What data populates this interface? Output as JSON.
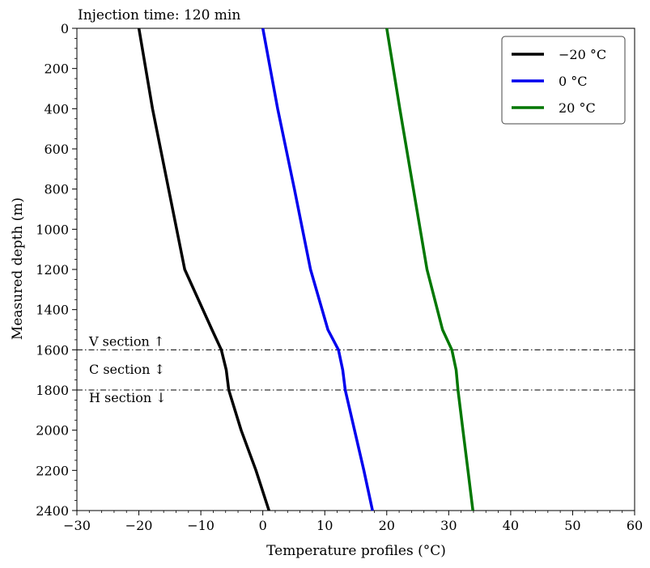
{
  "chart_data": {
    "type": "line",
    "title": "Injection time: 120 min",
    "xlabel": "Temperature profiles (°C)",
    "ylabel": "Measured depth (m)",
    "xlim": [
      -30,
      60
    ],
    "ylim": [
      2400,
      0
    ],
    "y_inverted": true,
    "grid": false,
    "legend_position": "top-right",
    "x_ticks": [
      -30,
      -20,
      -10,
      0,
      10,
      20,
      30,
      40,
      50,
      60
    ],
    "x_tick_labels": [
      "−30",
      "−20",
      "−10",
      "0",
      "10",
      "20",
      "30",
      "40",
      "50",
      "60"
    ],
    "y_ticks": [
      0,
      200,
      400,
      600,
      800,
      1000,
      1200,
      1400,
      1600,
      1800,
      2000,
      2200,
      2400
    ],
    "y_tick_labels": [
      "0",
      "200",
      "400",
      "600",
      "800",
      "1000",
      "1200",
      "1400",
      "1600",
      "1800",
      "2000",
      "2200",
      "2400"
    ],
    "series": [
      {
        "name": "−20 °C",
        "color": "#000000",
        "points": [
          [
            -20,
            0
          ],
          [
            -17.8,
            400
          ],
          [
            -15.2,
            800
          ],
          [
            -12.6,
            1200
          ],
          [
            -8.2,
            1500
          ],
          [
            -6.7,
            1600
          ],
          [
            -5.9,
            1700
          ],
          [
            -5.5,
            1800
          ],
          [
            -3.5,
            2000
          ],
          [
            -1.1,
            2200
          ],
          [
            1.0,
            2400
          ]
        ]
      },
      {
        "name": "0 °C",
        "color": "#0000ee",
        "points": [
          [
            0,
            0
          ],
          [
            2.4,
            400
          ],
          [
            5.1,
            800
          ],
          [
            7.7,
            1200
          ],
          [
            10.5,
            1500
          ],
          [
            12.2,
            1600
          ],
          [
            12.9,
            1700
          ],
          [
            13.3,
            1800
          ],
          [
            14.8,
            2000
          ],
          [
            16.3,
            2200
          ],
          [
            17.7,
            2400
          ]
        ]
      },
      {
        "name": "20 °C",
        "color": "#007700",
        "points": [
          [
            20,
            0
          ],
          [
            22.1,
            400
          ],
          [
            24.3,
            800
          ],
          [
            26.5,
            1200
          ],
          [
            29.0,
            1500
          ],
          [
            30.5,
            1600
          ],
          [
            31.2,
            1700
          ],
          [
            31.5,
            1800
          ],
          [
            32.3,
            2000
          ],
          [
            33.1,
            2200
          ],
          [
            33.9,
            2400
          ]
        ]
      }
    ],
    "reference_lines": [
      {
        "y": 1600,
        "style": "dash-dot"
      },
      {
        "y": 1800,
        "style": "dash-dot"
      }
    ],
    "annotations": [
      {
        "text": "V section ↑",
        "y": 1560
      },
      {
        "text": "C section ↕",
        "y": 1700
      },
      {
        "text": "H section ↓",
        "y": 1840
      }
    ]
  }
}
